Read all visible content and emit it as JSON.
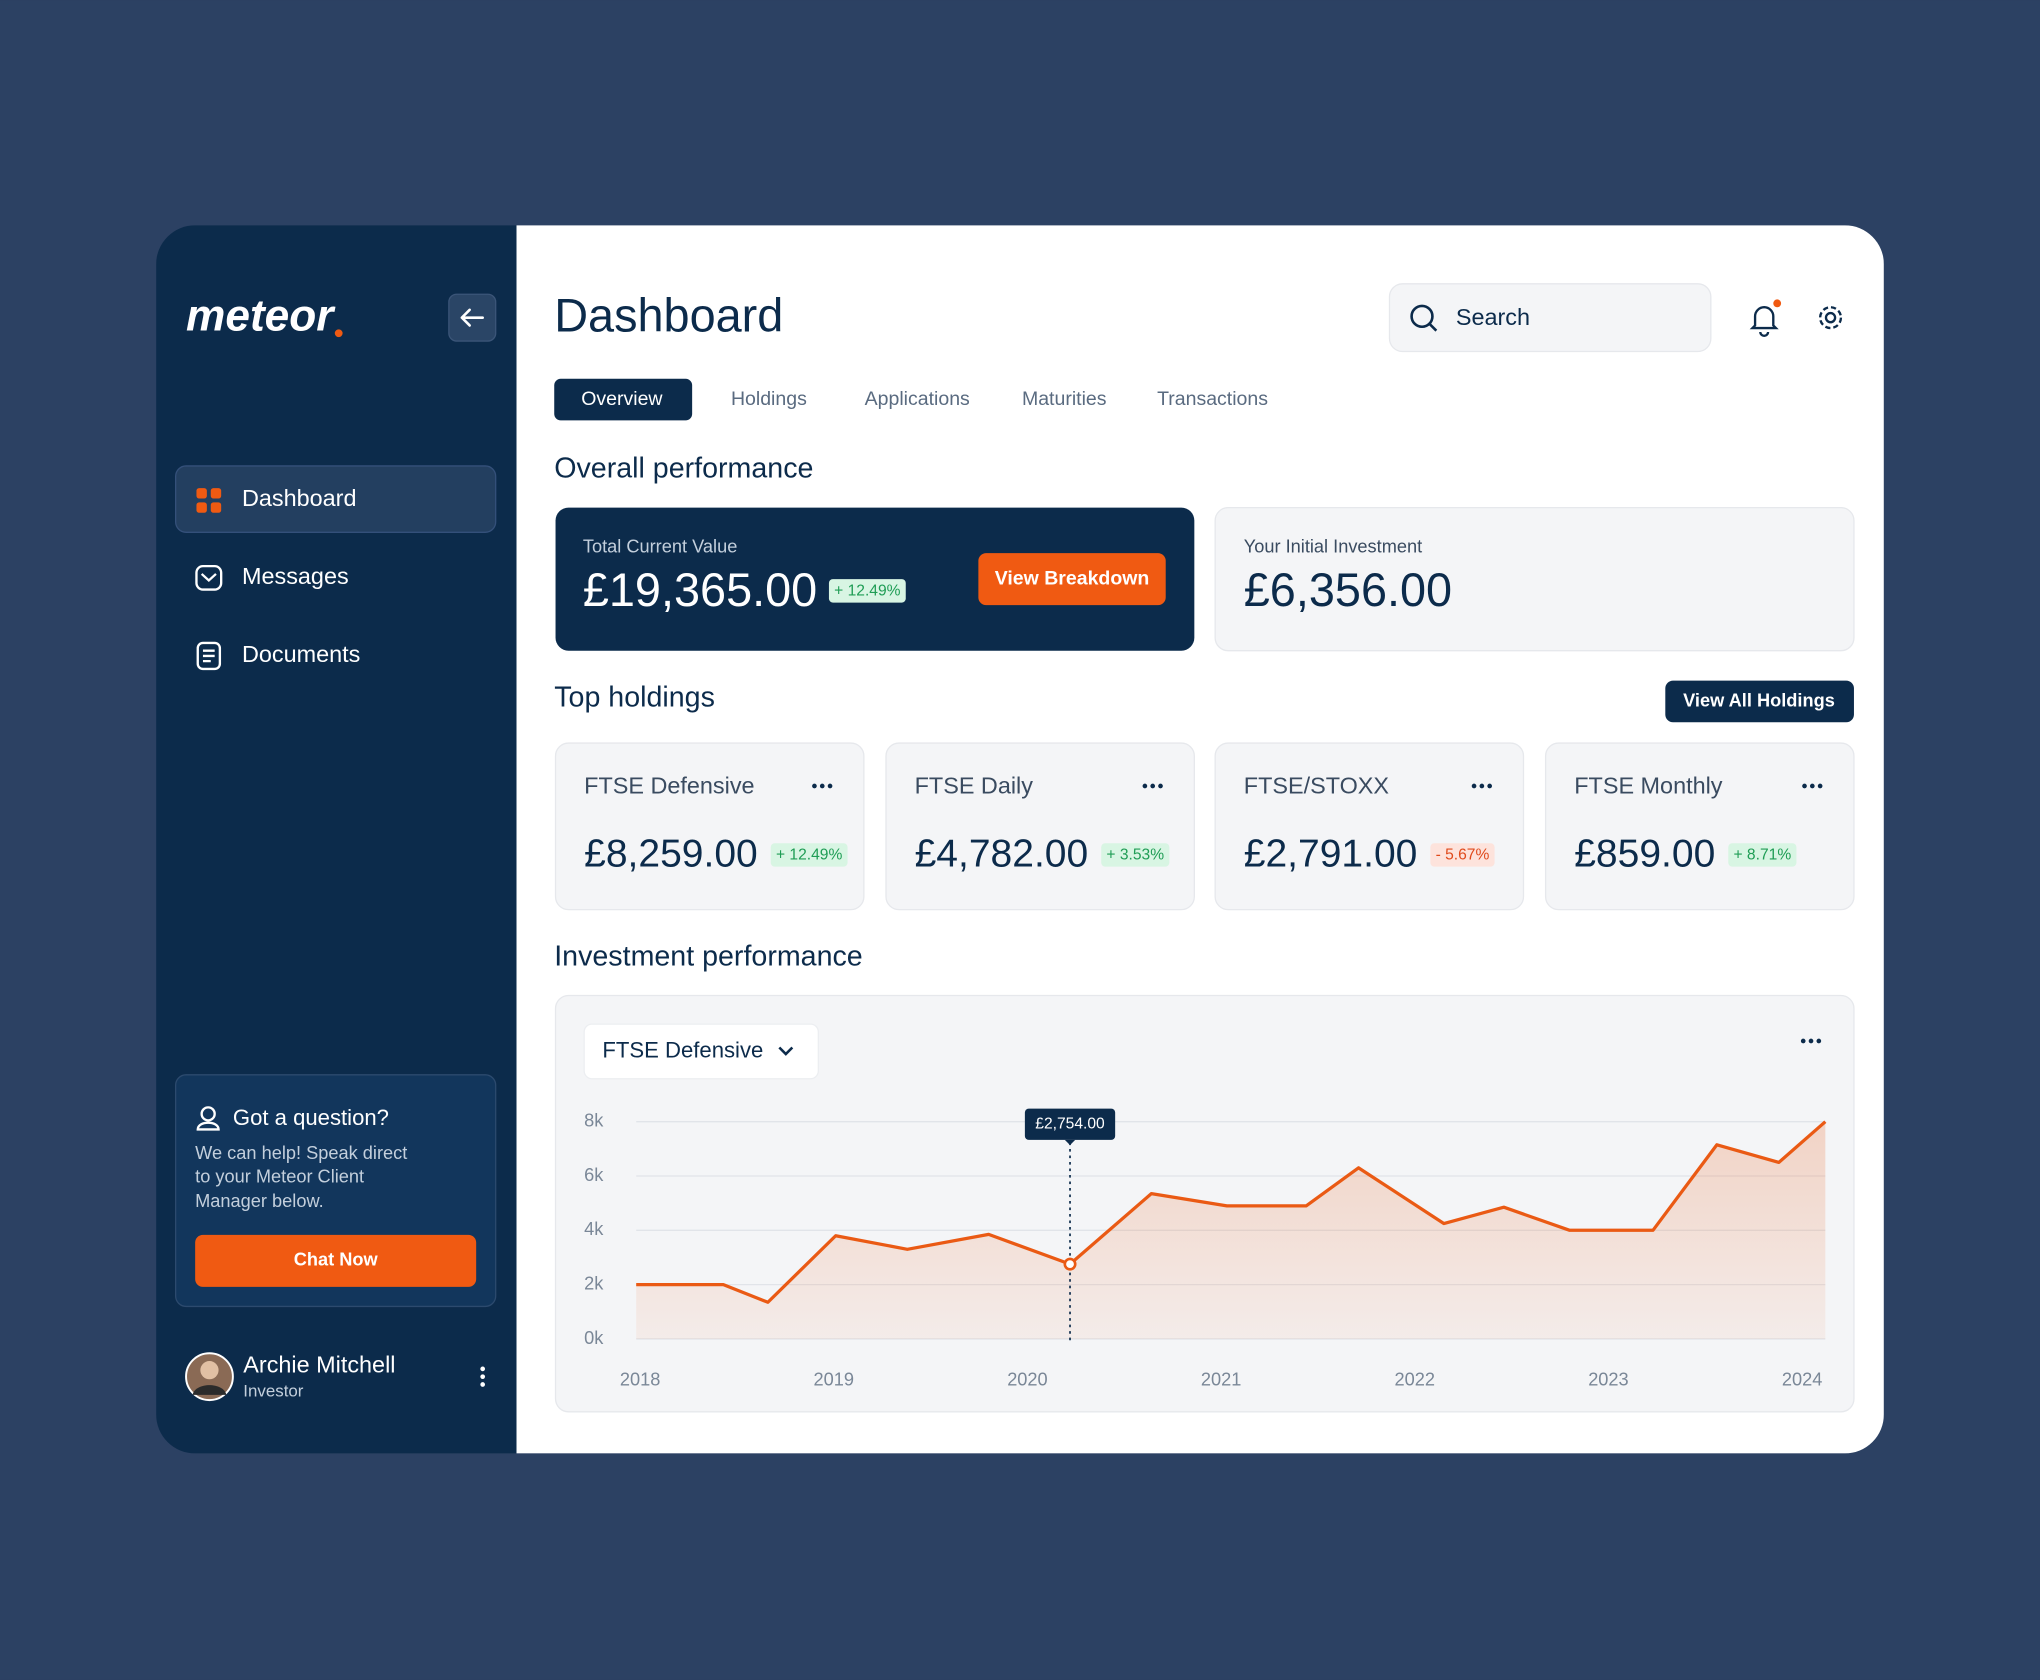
{
  "sidebar": {
    "logo": "meteor",
    "nav": [
      "Dashboard",
      "Messages",
      "Documents"
    ],
    "help": {
      "title": "Got a question?",
      "text": [
        "We can help! Speak direct",
        "to your Meteor Client",
        "Manager below."
      ],
      "button": "Chat Now"
    },
    "user": {
      "name": "Archie Mitchell",
      "role": "Investor"
    }
  },
  "header": {
    "title": "Dashboard",
    "search": "Search"
  },
  "tabs": [
    "Overview",
    "Holdings",
    "Applications",
    "Maturities",
    "Transactions"
  ],
  "overall": {
    "title": "Overall performance",
    "current": {
      "label": "Total Current Value",
      "value": "£19,365.00",
      "change": "+ 12.49%",
      "button": "View Breakdown"
    },
    "initial": {
      "label": "Your Initial Investment",
      "value": "£6,356.00"
    }
  },
  "holdings": {
    "title": "Top holdings",
    "button": "View All Holdings",
    "items": [
      {
        "name": "FTSE Defensive",
        "value": "£8,259.00",
        "change": "+ 12.49%"
      },
      {
        "name": "FTSE Daily",
        "value": "£4,782.00",
        "change": "+ 3.53%"
      },
      {
        "name": "FTSE/STOXX",
        "value": "£2,791.00",
        "change": "- 5.67%"
      },
      {
        "name": "FTSE Monthly",
        "value": "£859.00",
        "change": "+ 8.71%"
      }
    ]
  },
  "performance": {
    "title": "Investment performance",
    "dropdown": "FTSE Defensive"
  },
  "chart_data": {
    "type": "line",
    "color": "#ea5a14",
    "x": [
      2018.0,
      2018.45,
      2018.68,
      2019.03,
      2019.4,
      2019.82,
      2020.24,
      2020.66,
      2021.05,
      2021.46,
      2021.73,
      2022.17,
      2022.48,
      2022.82,
      2023.25,
      2023.58,
      2023.9,
      2024.14
    ],
    "values": [
      2000,
      2000,
      1350,
      3800,
      3300,
      3850,
      2754,
      5350,
      4900,
      4900,
      6300,
      4250,
      4850,
      4000,
      4000,
      7150,
      6500,
      8000
    ],
    "value_labels": [
      null,
      null,
      null,
      null,
      null,
      null,
      "£2,754.00",
      null,
      null,
      null,
      null,
      null,
      null,
      null,
      null,
      null,
      null,
      null
    ],
    "xlim": [
      2018,
      2024.14
    ],
    "xticks": [
      2018,
      2019,
      2020,
      2021,
      2022,
      2023,
      2024
    ],
    "ylim": [
      0,
      8000
    ],
    "yticks": [
      {
        "value": 0,
        "label": "0k"
      },
      {
        "value": 2000,
        "label": "2k"
      },
      {
        "value": 4000,
        "label": "4k"
      },
      {
        "value": 6000,
        "label": "6k"
      },
      {
        "value": 8000,
        "label": "8k"
      }
    ],
    "grid": true
  }
}
